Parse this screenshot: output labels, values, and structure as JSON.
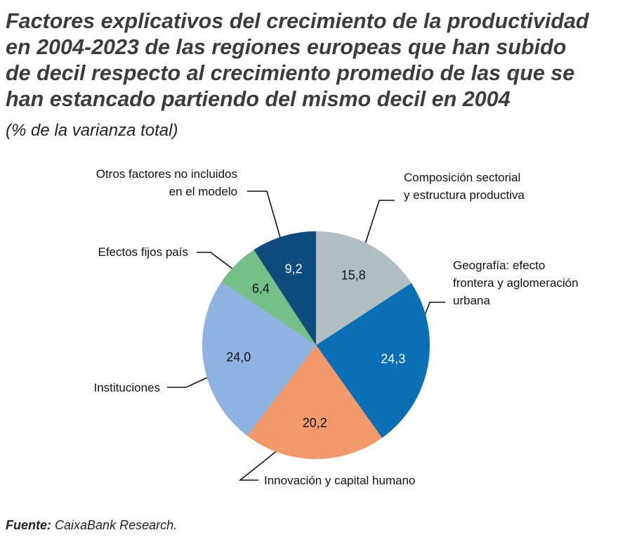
{
  "chart_data": {
    "type": "pie",
    "title": [
      "Factores explicativos del crecimiento de la productividad",
      "en 2004-2023 de las regiones europeas que han subido",
      "de decil respecto al crecimiento promedio de las que se",
      "han estancado partiendo del mismo decil en 2004"
    ],
    "subtitle": "(% de la varianza total)",
    "categories": [
      [
        "Composición sectorial",
        "y estructura productiva"
      ],
      [
        "Geografía: efecto",
        "frontera y aglomeración",
        "urbana"
      ],
      [
        "Innovación y capital humano"
      ],
      [
        "Instituciones"
      ],
      [
        "Efectos fijos país"
      ],
      [
        "Otros factores no incluidos",
        "en el modelo"
      ]
    ],
    "values": [
      15.8,
      24.3,
      20.2,
      24.0,
      6.4,
      9.2
    ],
    "value_labels": [
      "15,8",
      "24,3",
      "20,2",
      "24,0",
      "6,4",
      "9,2"
    ],
    "colors": [
      "#b1bfc3",
      "#0a6fb5",
      "#f2996c",
      "#8fb3e1",
      "#74c088",
      "#0e4c7d"
    ],
    "source_label": "Fuente:",
    "source": "CaixaBank Research."
  }
}
